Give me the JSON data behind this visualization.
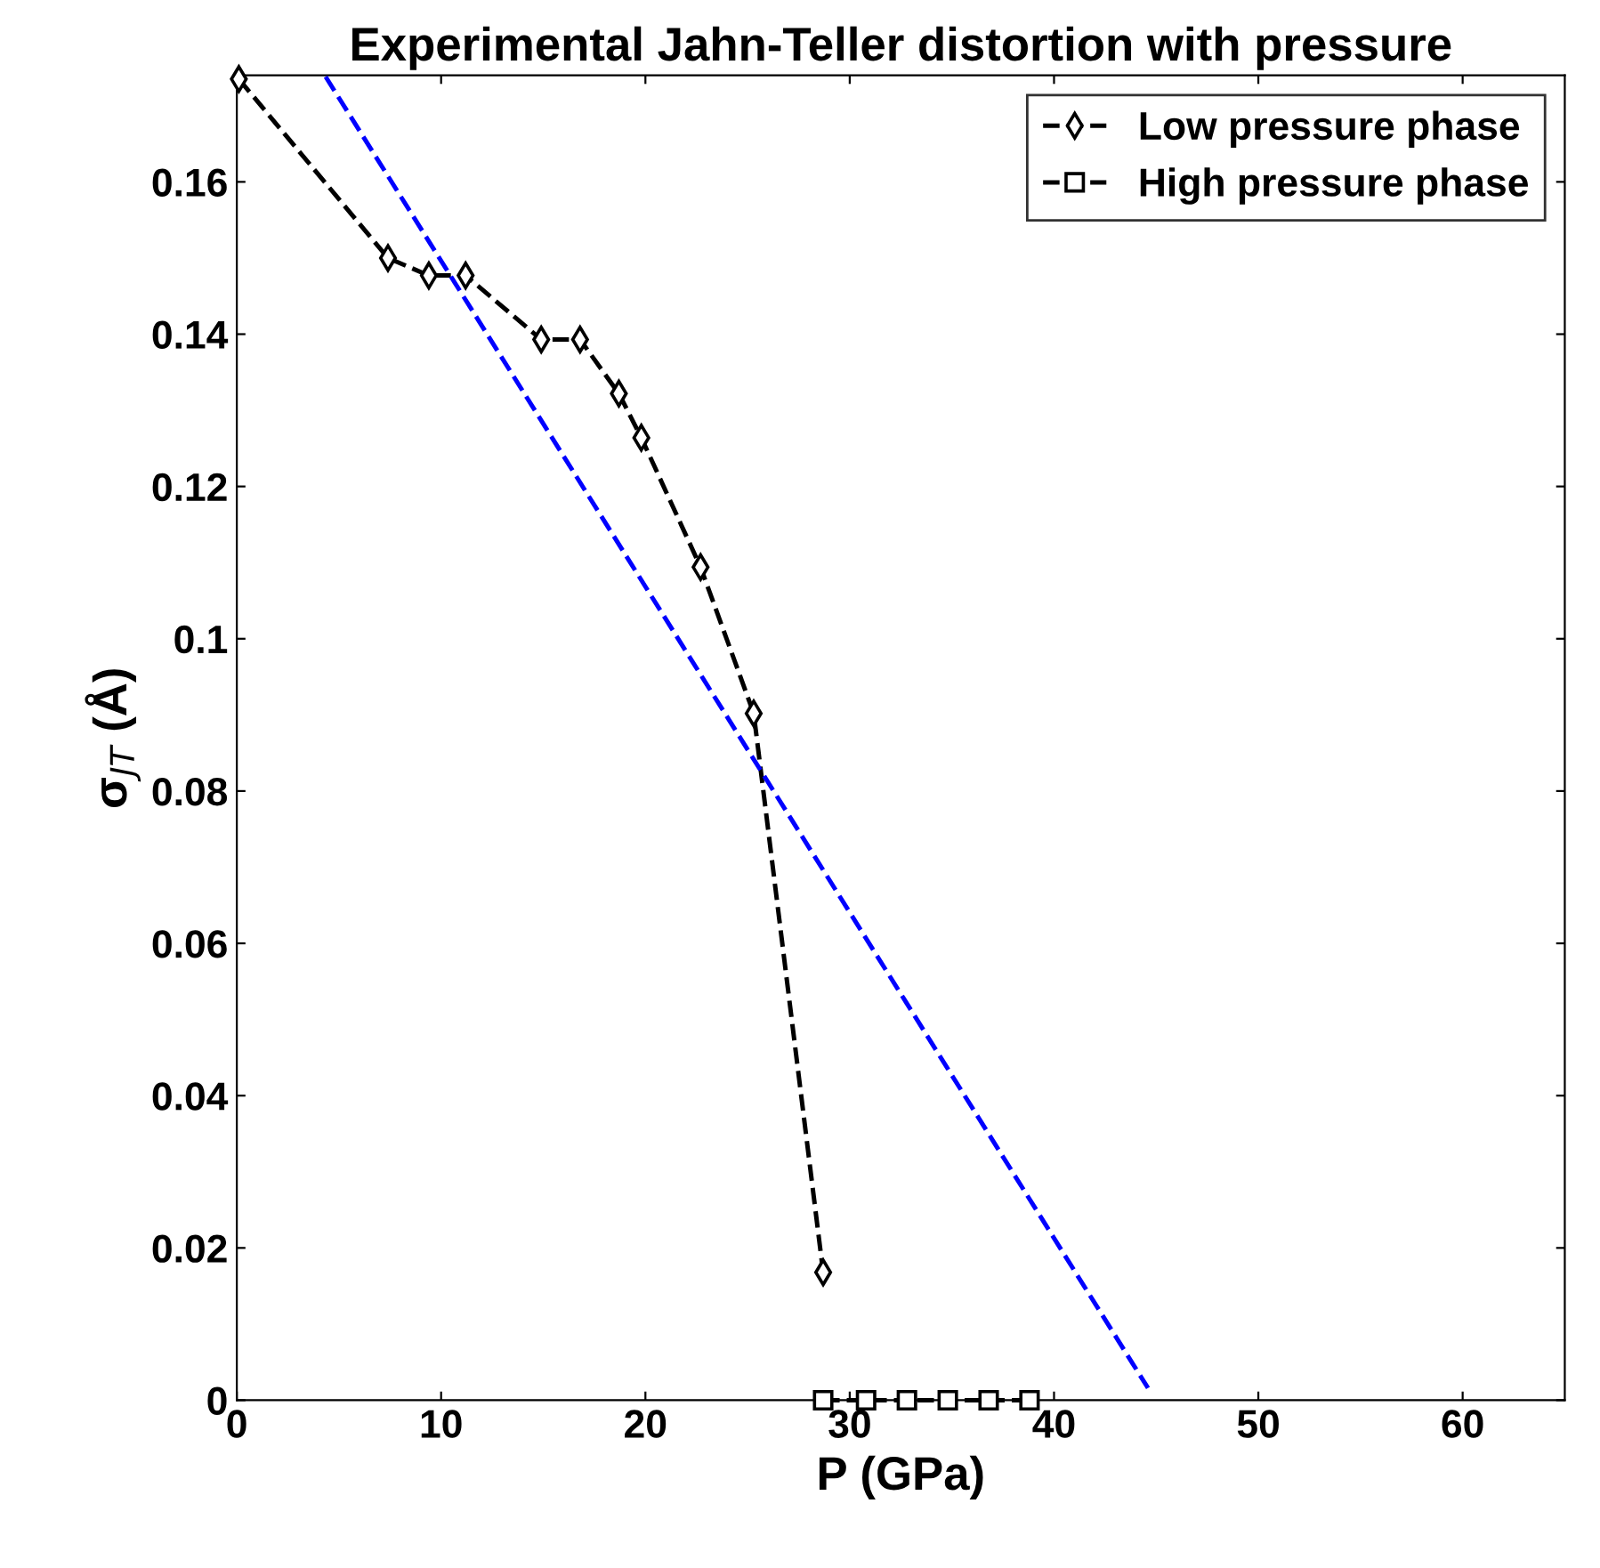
{
  "chart_data": {
    "type": "line",
    "title": "Experimental Jahn-Teller distortion with pressure",
    "xlabel": "P (GPa)",
    "ylabel": "σ$_{JT}$ (Å)",
    "xlim": [
      0,
      65
    ],
    "xticks": [
      0,
      10,
      20,
      30,
      40,
      50,
      60
    ],
    "ylim": [
      0,
      0.174
    ],
    "yticks": [
      0,
      0.02,
      0.04,
      0.06,
      0.08,
      0.1,
      0.12,
      0.14,
      0.16
    ],
    "legend": "top right",
    "line_style": "dashed",
    "series": [
      {
        "name": "Low pressure phase",
        "color": "#000000",
        "marker": "diamond",
        "x": [
          0.1,
          7.4,
          9.4,
          11.2,
          14.9,
          16.8,
          18.7,
          19.8,
          22.7,
          25.3,
          28.7
        ],
        "values": [
          0.1735,
          0.15,
          0.1477,
          0.1477,
          0.1393,
          0.1393,
          0.1322,
          0.1264,
          0.1094,
          0.0902,
          0.0168
        ]
      },
      {
        "name": "High pressure phase",
        "color": "#000000",
        "marker": "square",
        "x": [
          28.7,
          30.8,
          32.8,
          34.8,
          36.8,
          38.8
        ],
        "values": [
          0,
          0,
          0,
          0,
          0,
          0
        ]
      },
      {
        "color": "#0000ff",
        "marker": "none",
        "x": [
          4.35,
          44.6
        ],
        "values": [
          0.1738,
          0.0016
        ]
      }
    ]
  }
}
